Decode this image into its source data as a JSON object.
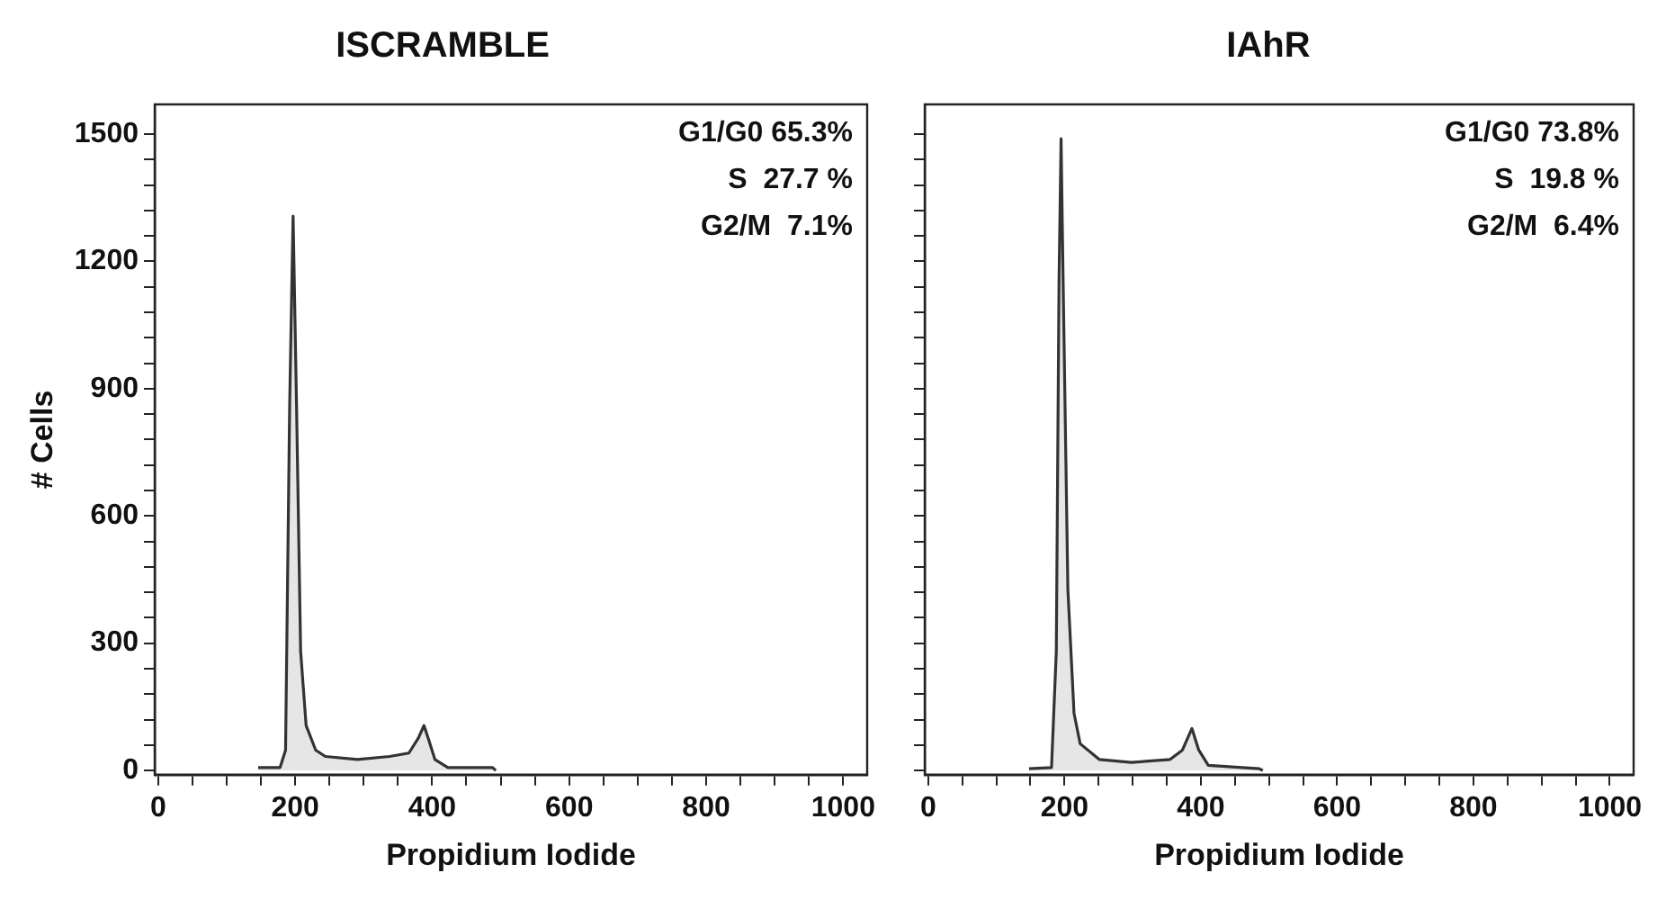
{
  "chart_data": [
    {
      "type": "area",
      "title": "ISCRAMBLE",
      "xlabel": "Propidium Iodide",
      "ylabel": "# Cells",
      "series": [
        {
          "color": "#333333",
          "x": [
            146,
            178,
            186,
            192,
            197,
            202,
            208,
            216,
            230,
            244,
            291,
            338,
            366,
            380,
            388,
            394,
            404,
            423,
            488,
            493
          ],
          "values": [
            7,
            7,
            48,
            863,
            1307,
            863,
            281,
            106,
            48,
            33,
            26,
            33,
            41,
            77,
            106,
            77,
            26,
            7,
            7,
            0
          ]
        }
      ],
      "xlim": [
        -5,
        1035
      ],
      "ylim": [
        -10,
        1570
      ],
      "xticks": [
        0,
        {
          "value": 50,
          "label": null
        },
        {
          "value": 100,
          "label": null
        },
        {
          "value": 150,
          "label": null
        },
        200,
        {
          "value": 250,
          "label": null
        },
        {
          "value": 300,
          "label": null
        },
        {
          "value": 350,
          "label": null
        },
        400,
        {
          "value": 450,
          "label": null
        },
        {
          "value": 500,
          "label": null
        },
        {
          "value": 550,
          "label": null
        },
        600,
        {
          "value": 650,
          "label": null
        },
        {
          "value": 700,
          "label": null
        },
        {
          "value": 750,
          "label": null
        },
        800,
        {
          "value": 850,
          "label": null
        },
        {
          "value": 900,
          "label": null
        },
        {
          "value": 950,
          "label": null
        },
        1000
      ],
      "yticks": [
        0,
        {
          "value": 60,
          "label": null
        },
        {
          "value": 120,
          "label": null
        },
        {
          "value": 180,
          "label": null
        },
        {
          "value": 240,
          "label": null
        },
        300,
        {
          "value": 360,
          "label": null
        },
        {
          "value": 420,
          "label": null
        },
        {
          "value": 480,
          "label": null
        },
        {
          "value": 540,
          "label": null
        },
        600,
        {
          "value": 660,
          "label": null
        },
        {
          "value": 720,
          "label": null
        },
        {
          "value": 780,
          "label": null
        },
        {
          "value": 840,
          "label": null
        },
        900,
        {
          "value": 960,
          "label": null
        },
        {
          "value": 1020,
          "label": null
        },
        {
          "value": 1080,
          "label": null
        },
        {
          "value": 1140,
          "label": null
        },
        1200,
        {
          "value": 1260,
          "label": null
        },
        {
          "value": 1320,
          "label": null
        },
        {
          "value": 1380,
          "label": null
        },
        {
          "value": 1440,
          "label": null
        },
        1500
      ],
      "annotations": [
        "G1/G0 65.3%",
        "S  27.7 %",
        "G2/M  7.1%"
      ],
      "grid": false,
      "legend": false
    },
    {
      "type": "area",
      "title": "IAhR",
      "xlabel": "Propidium Iodide",
      "series": [
        {
          "color": "#333333",
          "x": [
            148,
            181,
            188,
            192,
            195,
            198,
            205,
            214,
            223,
            251,
            298,
            355,
            373,
            387,
            397,
            411,
            486,
            491
          ],
          "values": [
            4,
            7,
            281,
            1154,
            1489,
            1154,
            426,
            135,
            63,
            26,
            19,
            26,
            48,
            99,
            48,
            12,
            4,
            0
          ]
        }
      ],
      "xlim": [
        -5,
        1035
      ],
      "ylim": [
        -10,
        1570
      ],
      "xticks": [
        0,
        {
          "value": 50,
          "label": null
        },
        {
          "value": 100,
          "label": null
        },
        {
          "value": 150,
          "label": null
        },
        200,
        {
          "value": 250,
          "label": null
        },
        {
          "value": 300,
          "label": null
        },
        {
          "value": 350,
          "label": null
        },
        400,
        {
          "value": 450,
          "label": null
        },
        {
          "value": 500,
          "label": null
        },
        {
          "value": 550,
          "label": null
        },
        600,
        {
          "value": 650,
          "label": null
        },
        {
          "value": 700,
          "label": null
        },
        {
          "value": 750,
          "label": null
        },
        800,
        {
          "value": 850,
          "label": null
        },
        {
          "value": 900,
          "label": null
        },
        {
          "value": 950,
          "label": null
        },
        1000
      ],
      "yticks": [
        0,
        {
          "value": 60,
          "label": null
        },
        {
          "value": 120,
          "label": null
        },
        {
          "value": 180,
          "label": null
        },
        {
          "value": 240,
          "label": null
        },
        300,
        {
          "value": 360,
          "label": null
        },
        {
          "value": 420,
          "label": null
        },
        {
          "value": 480,
          "label": null
        },
        {
          "value": 540,
          "label": null
        },
        600,
        {
          "value": 660,
          "label": null
        },
        {
          "value": 720,
          "label": null
        },
        {
          "value": 780,
          "label": null
        },
        {
          "value": 840,
          "label": null
        },
        900,
        {
          "value": 960,
          "label": null
        },
        {
          "value": 1020,
          "label": null
        },
        {
          "value": 1080,
          "label": null
        },
        {
          "value": 1140,
          "label": null
        },
        1200,
        {
          "value": 1260,
          "label": null
        },
        {
          "value": 1320,
          "label": null
        },
        {
          "value": 1380,
          "label": null
        },
        {
          "value": 1440,
          "label": null
        },
        1500
      ],
      "annotations": [
        "G1/G0 73.8%",
        "S  19.8 %",
        "G2/M  6.4%"
      ],
      "tick_labels": "x",
      "grid": false,
      "legend": false
    }
  ]
}
